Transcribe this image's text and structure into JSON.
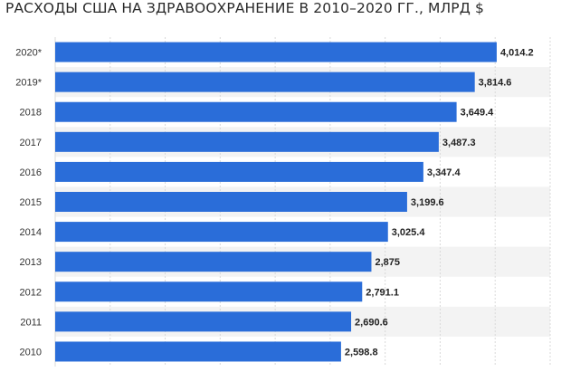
{
  "chart_data": {
    "type": "bar",
    "orientation": "horizontal",
    "title": "РАСХОДЫ США НА ЗДРАВООХРАНЕНИЕ В 2010–2020 ГГ., МЛРД $",
    "categories": [
      "2020*",
      "2019*",
      "2018",
      "2017",
      "2016",
      "2015",
      "2014",
      "2013",
      "2012",
      "2011",
      "2010"
    ],
    "values": [
      4014.2,
      3814.6,
      3649.4,
      3487.3,
      3347.4,
      3199.6,
      3025.4,
      2875,
      2791.1,
      2690.6,
      2598.8
    ],
    "value_labels": [
      "4,014.2",
      "3,814.6",
      "3,649.4",
      "3,487.3",
      "3,347.4",
      "3,199.6",
      "3,025.4",
      "2,875",
      "2,791.1",
      "2,690.6",
      "2,598.8"
    ],
    "xlim": [
      0,
      4500
    ],
    "grid": true,
    "bar_color": "#2a6dd9",
    "band_color": "#f3f3f3"
  }
}
